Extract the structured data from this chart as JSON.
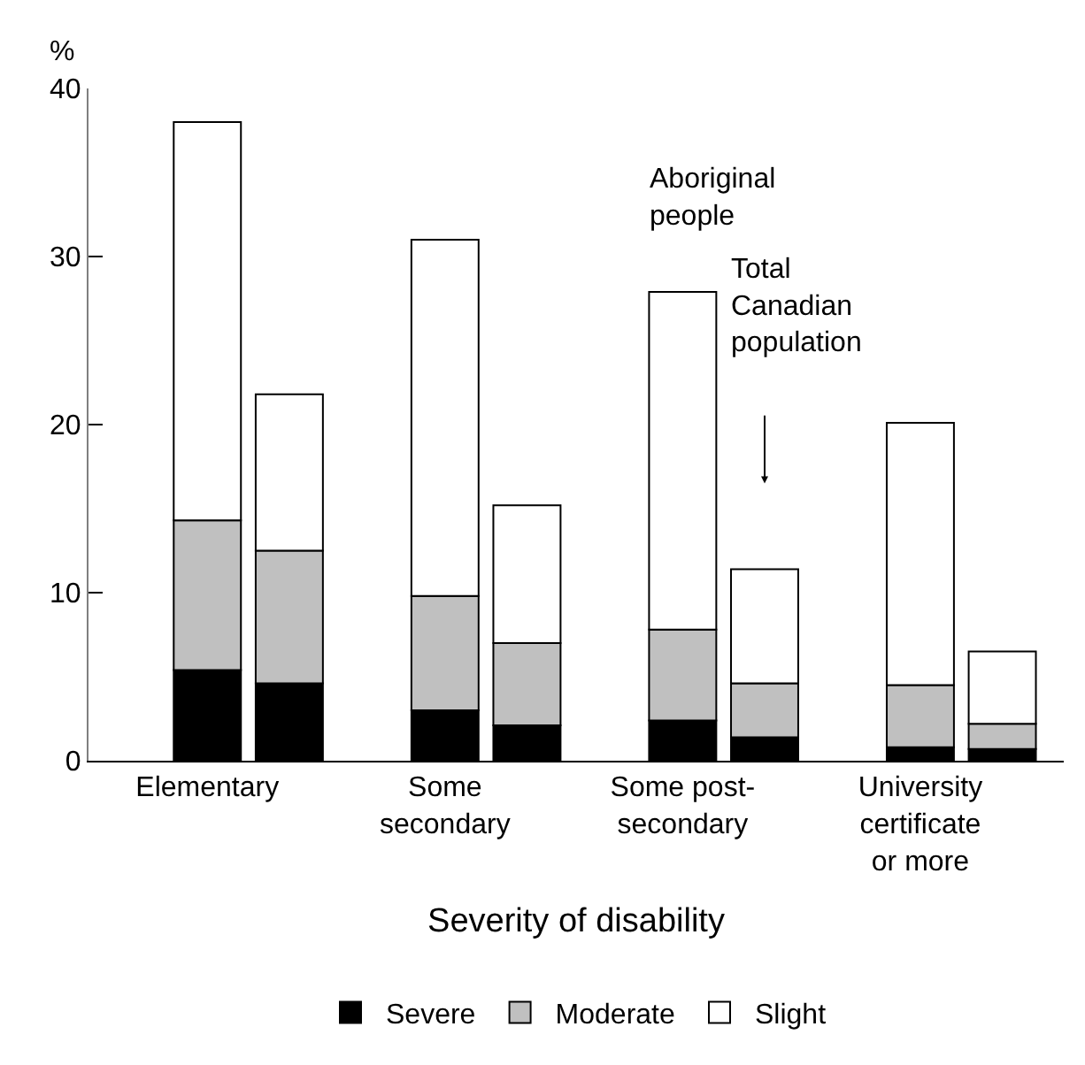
{
  "chart_data": {
    "type": "bar",
    "stacked": true,
    "xlabel": "Severity of disability",
    "ylabel": "%",
    "categories": [
      "Elementary",
      null,
      "Some\nsecondary",
      null,
      "Some post-\nsecondary",
      null,
      "University\ncertificate\nor more",
      null
    ],
    "series": [
      {
        "name": "Severe",
        "color": "#000000",
        "values": [
          5.4,
          4.6,
          3.0,
          2.1,
          2.4,
          1.4,
          0.8,
          0.7
        ]
      },
      {
        "name": "Moderate",
        "color": "#c0c0c0",
        "values": [
          8.9,
          7.9,
          6.8,
          4.9,
          5.4,
          3.2,
          3.7,
          1.5
        ]
      },
      {
        "name": "Slight",
        "color": "#ffffff",
        "values": [
          23.7,
          9.3,
          21.2,
          8.2,
          20.1,
          6.8,
          15.6,
          4.3
        ]
      }
    ],
    "annotations": [
      "Aboriginal\npeople",
      "Total\nCanadian\npopulation"
    ],
    "ylim": [
      0,
      40
    ],
    "yticks": [
      0,
      10,
      20,
      30,
      40
    ],
    "legend": "bottom"
  }
}
